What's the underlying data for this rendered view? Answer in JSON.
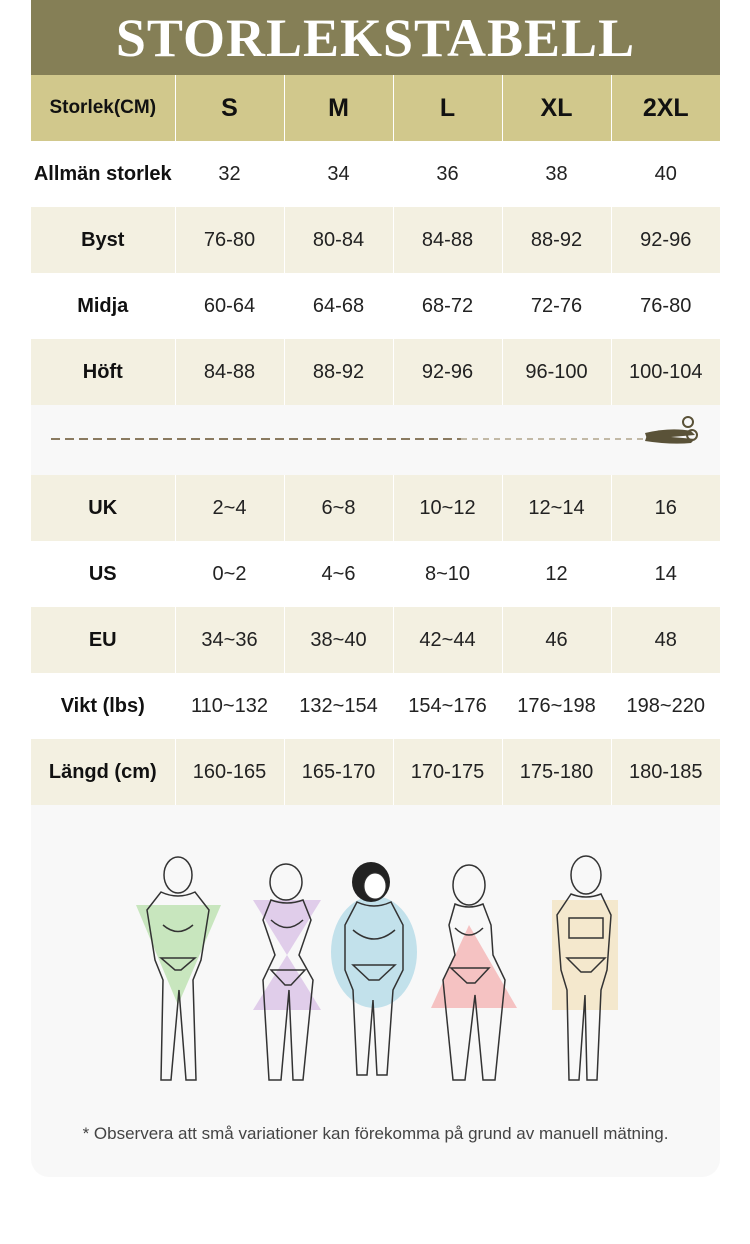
{
  "title": "STORLEKSTABELL",
  "header": [
    "Storlek(CM)",
    "S",
    "M",
    "L",
    "XL",
    "2XL"
  ],
  "rows_top": [
    {
      "label": "Allmän storlek",
      "values": [
        "32",
        "34",
        "36",
        "38",
        "40"
      ]
    },
    {
      "label": "Byst",
      "values": [
        "76-80",
        "80-84",
        "84-88",
        "88-92",
        "92-96"
      ]
    },
    {
      "label": "Midja",
      "values": [
        "60-64",
        "64-68",
        "68-72",
        "72-76",
        "76-80"
      ]
    },
    {
      "label": "Höft",
      "values": [
        "84-88",
        "88-92",
        "92-96",
        "96-100",
        "100-104"
      ]
    }
  ],
  "rows_bottom": [
    {
      "label": "UK",
      "values": [
        "2~4",
        "6~8",
        "10~12",
        "12~14",
        "16"
      ]
    },
    {
      "label": "US",
      "values": [
        "0~2",
        "4~6",
        "8~10",
        "12",
        "14"
      ]
    },
    {
      "label": "EU",
      "values": [
        "34~36",
        "38~40",
        "42~44",
        "46",
        "48"
      ]
    },
    {
      "label": "Vikt (lbs)",
      "values": [
        "110~132",
        "132~154",
        "154~176",
        "176~198",
        "198~220"
      ]
    },
    {
      "label": "Längd (cm)",
      "values": [
        "160-165",
        "165-170",
        "170-175",
        "175-180",
        "180-185"
      ]
    }
  ],
  "separator_icon": "scissors-icon",
  "body_shapes": [
    {
      "name": "inverted-triangle",
      "color": "#bfe3b4"
    },
    {
      "name": "hourglass",
      "color": "#dcc6e8"
    },
    {
      "name": "apple",
      "color": "#b9dde9"
    },
    {
      "name": "pear",
      "color": "#f4b8b8"
    },
    {
      "name": "rectangle",
      "color": "#f3e5c8"
    }
  ],
  "footnote": "* Observera att små variationer kan förekomma på grund av manuell mätning.",
  "colors": {
    "title_bg": "#857f56",
    "header_bg": "#d1c88c",
    "alt_row": "#f3f0e1"
  }
}
